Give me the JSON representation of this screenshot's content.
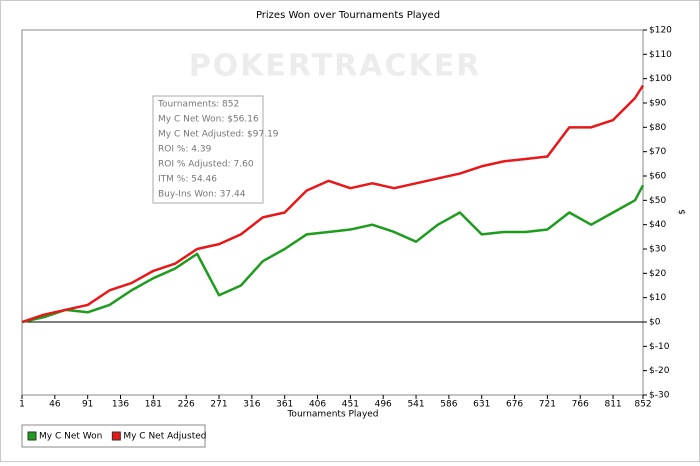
{
  "chart_data": {
    "type": "line",
    "title": "Prizes Won over Tournaments Played",
    "x_label": "Tournaments Played",
    "y_label": "$",
    "watermark": "POKERTRACKER",
    "annotations": [
      "Tournaments: 852",
      "My C Net Won: $56.16",
      "My C Net Adjusted: $97.19",
      "ROI %: 4.39",
      "ROI % Adjusted: 7.60",
      "ITM %: 54.46",
      "Buy-Ins Won: 37.44"
    ],
    "x": [
      1,
      31,
      61,
      91,
      121,
      151,
      181,
      211,
      241,
      271,
      301,
      331,
      361,
      391,
      421,
      451,
      481,
      511,
      541,
      571,
      601,
      631,
      661,
      691,
      721,
      751,
      781,
      811,
      841,
      852
    ],
    "series": [
      {
        "name": "My C Net Won",
        "color": "#1e9c1e",
        "values": [
          0,
          2,
          5,
          4,
          7,
          13,
          18,
          22,
          28,
          11,
          15,
          25,
          30,
          36,
          37,
          38,
          40,
          37,
          33,
          40,
          45,
          36,
          37,
          37,
          38,
          45,
          40,
          45,
          50,
          56.16
        ]
      },
      {
        "name": "My C Net Adjusted",
        "color": "#e8171a",
        "values": [
          0,
          3,
          5,
          7,
          13,
          16,
          21,
          24,
          30,
          32,
          36,
          43,
          45,
          54,
          58,
          55,
          57,
          55,
          57,
          59,
          61,
          64,
          66,
          67,
          68,
          80,
          80,
          83,
          92,
          97.19
        ]
      }
    ],
    "xlim": [
      1,
      852
    ],
    "xticks": [
      1,
      46,
      91,
      136,
      181,
      226,
      271,
      316,
      361,
      406,
      451,
      496,
      541,
      586,
      631,
      676,
      721,
      766,
      811,
      852
    ],
    "ylim": [
      -30,
      120
    ],
    "yticks": [
      {
        "value": -30,
        "label": "$-30"
      },
      {
        "value": -20,
        "label": "$-20"
      },
      {
        "value": -10,
        "label": "$-10"
      },
      {
        "value": 0,
        "label": "$0"
      },
      {
        "value": 10,
        "label": "$10"
      },
      {
        "value": 20,
        "label": "$20"
      },
      {
        "value": 30,
        "label": "$30"
      },
      {
        "value": 40,
        "label": "$40"
      },
      {
        "value": 50,
        "label": "$50"
      },
      {
        "value": 60,
        "label": "$60"
      },
      {
        "value": 70,
        "label": "$70"
      },
      {
        "value": 80,
        "label": "$80"
      },
      {
        "value": 90,
        "label": "$90"
      },
      {
        "value": 100,
        "label": "$100"
      },
      {
        "value": 110,
        "label": "$110"
      },
      {
        "value": 120,
        "label": "$120"
      }
    ],
    "y_axis_side": "right",
    "grid": false,
    "legend_position": "bottom-left"
  }
}
